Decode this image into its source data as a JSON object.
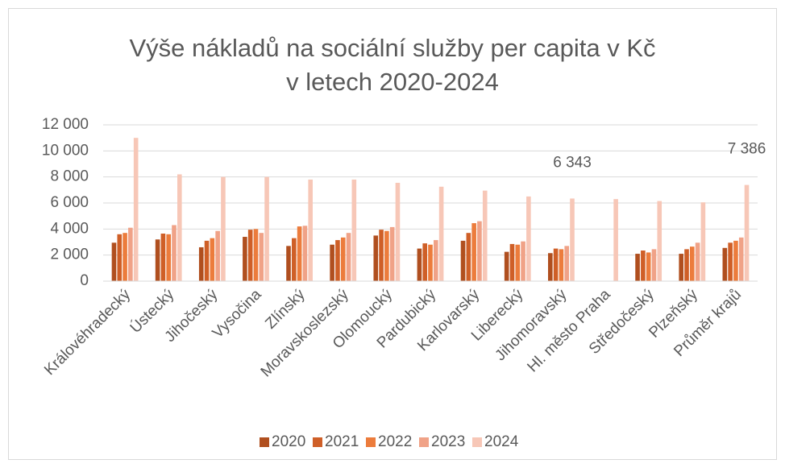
{
  "chart_data": {
    "type": "bar",
    "title": "Výše nákladů na sociální služby per capita v Kč",
    "subtitle": "v letech 2020-2024",
    "categories": [
      "Královéhradecký",
      "Ústecký",
      "Jihočeský",
      "Vysočina",
      "Zlínský",
      "Moravskoslezský",
      "Olomoucký",
      "Pardubický",
      "Karlovarský",
      "Liberecký",
      "Jihomoravský",
      "Hl. město Praha",
      "Středočeský",
      "Plzeňský",
      "Průměr krajů"
    ],
    "series": [
      {
        "name": "2020",
        "color": "#b04f1f",
        "values": [
          2950,
          3200,
          2600,
          3400,
          2700,
          2800,
          3500,
          2500,
          3100,
          2250,
          2150,
          null,
          2100,
          2100,
          2550
        ]
      },
      {
        "name": "2021",
        "color": "#cf5f27",
        "values": [
          3600,
          3650,
          3100,
          3950,
          3300,
          3150,
          3950,
          2900,
          3700,
          2850,
          2500,
          null,
          2350,
          2450,
          2950
        ]
      },
      {
        "name": "2022",
        "color": "#ec7c3c",
        "values": [
          3700,
          3600,
          3300,
          4000,
          4200,
          3350,
          3850,
          2800,
          4450,
          2800,
          2450,
          null,
          2200,
          2650,
          3100
        ]
      },
      {
        "name": "2023",
        "color": "#f0a287",
        "values": [
          4100,
          4300,
          3850,
          3700,
          4250,
          3700,
          4150,
          3150,
          4600,
          3050,
          2700,
          null,
          2450,
          2950,
          3350
        ]
      },
      {
        "name": "2024",
        "color": "#f7c7b7",
        "values": [
          11000,
          8200,
          8000,
          8000,
          7800,
          7800,
          7550,
          7250,
          6950,
          6500,
          6343,
          6300,
          6150,
          6050,
          7386
        ],
        "value_labels": [
          null,
          null,
          null,
          null,
          null,
          null,
          null,
          null,
          null,
          null,
          "6 343",
          null,
          null,
          null,
          "7 386"
        ]
      }
    ],
    "ylim": [
      0,
      12000
    ],
    "yticks": [
      0,
      {
        "value": 2000,
        "label": "2 000"
      },
      {
        "value": 4000,
        "label": "4 000"
      },
      {
        "value": 6000,
        "label": "6 000"
      },
      {
        "value": 8000,
        "label": "8 000"
      },
      {
        "value": 10000,
        "label": "10 000"
      },
      {
        "value": 12000,
        "label": "12 000"
      }
    ],
    "grid": true,
    "legend": "bottom"
  }
}
